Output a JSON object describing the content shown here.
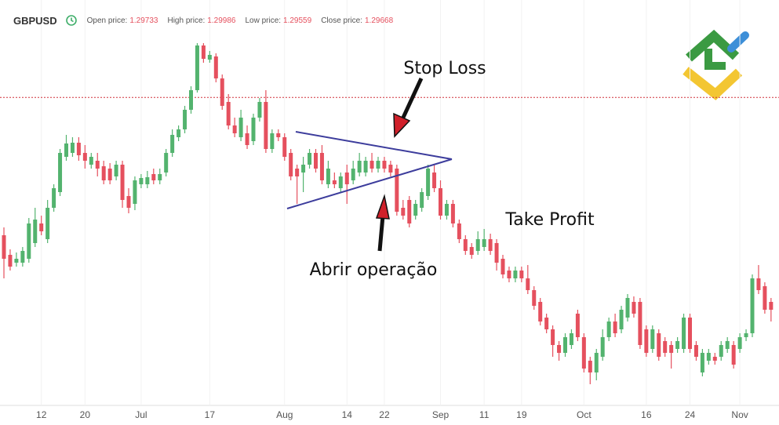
{
  "chart_data": {
    "type": "candlestick",
    "symbol": "GBPUSD",
    "quote": [
      {
        "label": "Open price:",
        "value": 1.29733
      },
      {
        "label": "High price:",
        "value": 1.29986
      },
      {
        "label": "Low price:",
        "value": 1.29559
      },
      {
        "label": "Close price:",
        "value": 1.29668
      }
    ],
    "annotations": [
      "Stop Loss",
      "Take Profit",
      "Abrir operação"
    ],
    "up_color": "#53b36e",
    "down_color": "#e5505e",
    "ylim": [
      1.2574,
      1.3047
    ],
    "categories": [
      null,
      null,
      null,
      null,
      null,
      null,
      "12",
      null,
      null,
      null,
      null,
      null,
      null,
      "20",
      null,
      null,
      null,
      null,
      null,
      null,
      null,
      null,
      "Jul",
      null,
      null,
      null,
      null,
      null,
      null,
      null,
      null,
      null,
      null,
      "17",
      null,
      null,
      null,
      null,
      null,
      null,
      null,
      null,
      null,
      null,
      null,
      "Aug",
      null,
      null,
      null,
      null,
      null,
      null,
      null,
      null,
      null,
      "14",
      null,
      null,
      null,
      null,
      null,
      "22",
      null,
      null,
      null,
      null,
      null,
      null,
      null,
      null,
      "Sep",
      null,
      null,
      null,
      null,
      null,
      null,
      "11",
      null,
      null,
      null,
      null,
      null,
      "19",
      null,
      null,
      null,
      null,
      null,
      null,
      null,
      null,
      null,
      "Oct",
      null,
      null,
      null,
      null,
      null,
      null,
      null,
      null,
      null,
      "16",
      null,
      null,
      null,
      null,
      null,
      null,
      "24",
      null,
      null,
      null,
      null,
      null,
      null,
      null,
      "Nov",
      null,
      null,
      null,
      null,
      null
    ],
    "open": [
      1.2791,
      1.2766,
      1.2756,
      1.2756,
      1.2761,
      1.2781,
      1.2806,
      1.2786,
      1.2826,
      1.2846,
      1.2891,
      1.2896,
      1.2909,
      1.2896,
      1.2881,
      1.2886,
      1.2879,
      1.2876,
      1.2866,
      1.2881,
      1.2841,
      1.2831,
      1.2856,
      1.2856,
      1.2869,
      1.2861,
      1.2871,
      1.2896,
      1.2916,
      1.2926,
      1.2951,
      1.2976,
      1.3033,
      1.3015,
      1.3019,
      1.2991,
      1.2961,
      1.2931,
      1.2916,
      1.2921,
      1.2911,
      1.2941,
      1.2961,
      1.2901,
      1.2921,
      1.2916,
      1.2896,
      1.2876,
      1.2871,
      1.2881,
      1.2896,
      1.2896,
      1.2856,
      1.2861,
      1.2851,
      1.2871,
      1.2861,
      1.2871,
      1.2871,
      1.2886,
      1.2876,
      1.2886,
      1.2881,
      1.2876,
      1.2826,
      1.2836,
      1.2816,
      1.2826,
      1.2841,
      1.2871,
      1.2851,
      1.2816,
      1.2831,
      1.2806,
      1.2786,
      1.2776,
      1.2771,
      1.2776,
      1.2786,
      1.2781,
      1.2761,
      1.2746,
      1.2736,
      1.2746,
      1.2736,
      1.2721,
      1.2706,
      1.2686,
      1.2671,
      1.2651,
      1.2641,
      1.2651,
      1.2691,
      1.2661,
      1.2631,
      1.2616,
      1.2636,
      1.2661,
      1.2681,
      1.2671,
      1.2686,
      1.2706,
      1.2706,
      1.2671,
      1.2646,
      1.2666,
      1.2656,
      1.2651,
      1.2646,
      1.2646,
      1.2686,
      1.2651,
      1.2616,
      1.2631,
      1.2636,
      1.2636,
      1.2646,
      1.2651,
      1.2646,
      1.2661,
      1.2666,
      1.2736,
      1.2726,
      1.2706
    ],
    "high": [
      1.2801,
      1.2773,
      1.2769,
      1.2776,
      1.2813,
      1.2826,
      1.2816,
      1.2836,
      1.2856,
      1.2901,
      1.2919,
      1.2916,
      1.2916,
      1.2906,
      1.2896,
      1.2896,
      1.2886,
      1.2883,
      1.2886,
      1.2886,
      1.2851,
      1.2866,
      1.2869,
      1.2873,
      1.2876,
      1.2876,
      1.2901,
      1.2926,
      1.2931,
      1.2956,
      1.2981,
      1.3036,
      1.3036,
      1.3026,
      1.3023,
      1.2996,
      1.2971,
      1.2941,
      1.2951,
      1.2931,
      1.2946,
      1.2966,
      1.2976,
      1.2926,
      1.2926,
      1.2921,
      1.2901,
      1.2881,
      1.2891,
      1.2901,
      1.2901,
      1.2906,
      1.2886,
      1.2871,
      1.2871,
      1.2881,
      1.2886,
      1.2896,
      1.2891,
      1.2896,
      1.2891,
      1.2891,
      1.2886,
      1.2881,
      1.2836,
      1.2841,
      1.2836,
      1.2851,
      1.2881,
      1.2881,
      1.2861,
      1.2836,
      1.2836,
      1.2811,
      1.2791,
      1.2781,
      1.2796,
      1.2799,
      1.2793,
      1.2786,
      1.2766,
      1.2751,
      1.2751,
      1.2751,
      1.2753,
      1.2726,
      1.2711,
      1.2691,
      1.2676,
      1.2656,
      1.2666,
      1.2671,
      1.2696,
      1.2666,
      1.2636,
      1.2646,
      1.2671,
      1.2686,
      1.2691,
      1.2701,
      1.2716,
      1.2713,
      1.2711,
      1.2676,
      1.2676,
      1.2671,
      1.2661,
      1.2656,
      1.2661,
      1.2691,
      1.2691,
      1.2656,
      1.2646,
      1.2646,
      1.2641,
      1.2656,
      1.2661,
      1.2656,
      1.2666,
      1.2671,
      1.2741,
      1.2753,
      1.2731,
      1.2711
    ],
    "low": [
      1.2736,
      1.2746,
      1.2751,
      1.2751,
      1.2756,
      1.2776,
      1.2791,
      1.2781,
      1.2821,
      1.2841,
      1.2886,
      1.2891,
      1.2886,
      1.2876,
      1.2876,
      1.2866,
      1.2856,
      1.2856,
      1.2861,
      1.2826,
      1.2819,
      1.2823,
      1.2851,
      1.2851,
      1.2856,
      1.2856,
      1.2866,
      1.2891,
      1.2911,
      1.2921,
      1.2946,
      1.2973,
      1.3011,
      1.3011,
      1.2986,
      1.2951,
      1.2926,
      1.2916,
      1.2911,
      1.2901,
      1.2906,
      1.2936,
      1.2896,
      1.2896,
      1.2911,
      1.2886,
      1.2861,
      1.2831,
      1.2846,
      1.2876,
      1.2871,
      1.2856,
      1.2851,
      1.2851,
      1.2846,
      1.2831,
      1.2856,
      1.2866,
      1.2866,
      1.2871,
      1.2871,
      1.2871,
      1.2866,
      1.2816,
      1.2811,
      1.2801,
      1.2811,
      1.2821,
      1.2836,
      1.2846,
      1.2811,
      1.2811,
      1.2801,
      1.2781,
      1.2766,
      1.2761,
      1.2766,
      1.2771,
      1.2766,
      1.2746,
      1.2736,
      1.2731,
      1.2731,
      1.2731,
      1.2716,
      1.2696,
      1.2676,
      1.2666,
      1.2636,
      1.2631,
      1.2636,
      1.2646,
      1.2656,
      1.2616,
      1.2601,
      1.2606,
      1.2631,
      1.2656,
      1.2661,
      1.2666,
      1.2681,
      1.2686,
      1.2646,
      1.2636,
      1.2641,
      1.2631,
      1.2636,
      1.2621,
      1.2641,
      1.2641,
      1.2641,
      1.2631,
      1.2611,
      1.2626,
      1.2626,
      1.2631,
      1.2641,
      1.2621,
      1.2641,
      1.2656,
      1.2661,
      1.2716,
      1.2691,
      1.2681
    ],
    "close": [
      1.2761,
      1.2751,
      1.2761,
      1.2771,
      1.2806,
      1.2811,
      1.2796,
      1.2826,
      1.2851,
      1.2896,
      1.2908,
      1.2909,
      1.2893,
      1.2886,
      1.2891,
      1.2876,
      1.2861,
      1.2861,
      1.2881,
      1.2836,
      1.2826,
      1.2861,
      1.2864,
      1.2865,
      1.2861,
      1.2869,
      1.2896,
      1.2919,
      1.2926,
      1.2951,
      1.2976,
      1.3033,
      1.3016,
      1.3021,
      1.2991,
      1.2956,
      1.2931,
      1.2921,
      1.2941,
      1.2906,
      1.2941,
      1.2961,
      1.2901,
      1.2921,
      1.2916,
      1.2891,
      1.2866,
      1.2866,
      1.2881,
      1.2896,
      1.2876,
      1.2861,
      1.2876,
      1.2856,
      1.2866,
      1.2856,
      1.2876,
      1.2886,
      1.2886,
      1.2876,
      1.2886,
      1.2876,
      1.2871,
      1.2821,
      1.2816,
      1.2806,
      1.2831,
      1.2846,
      1.2876,
      1.2851,
      1.2816,
      1.2831,
      1.2806,
      1.2786,
      1.2771,
      1.2766,
      1.2786,
      1.2786,
      1.2771,
      1.2756,
      1.2741,
      1.2736,
      1.2746,
      1.2736,
      1.2721,
      1.2701,
      1.2681,
      1.2671,
      1.2651,
      1.2641,
      1.2661,
      1.2666,
      1.2661,
      1.2621,
      1.2616,
      1.2641,
      1.2661,
      1.2681,
      1.2666,
      1.2696,
      1.2711,
      1.2691,
      1.2651,
      1.2641,
      1.2671,
      1.2636,
      1.2641,
      1.2641,
      1.2656,
      1.2686,
      1.2646,
      1.2636,
      1.2641,
      1.2641,
      1.2631,
      1.2651,
      1.2656,
      1.2626,
      1.2661,
      1.2666,
      1.2736,
      1.2721,
      1.2696,
      1.2696
    ]
  }
}
